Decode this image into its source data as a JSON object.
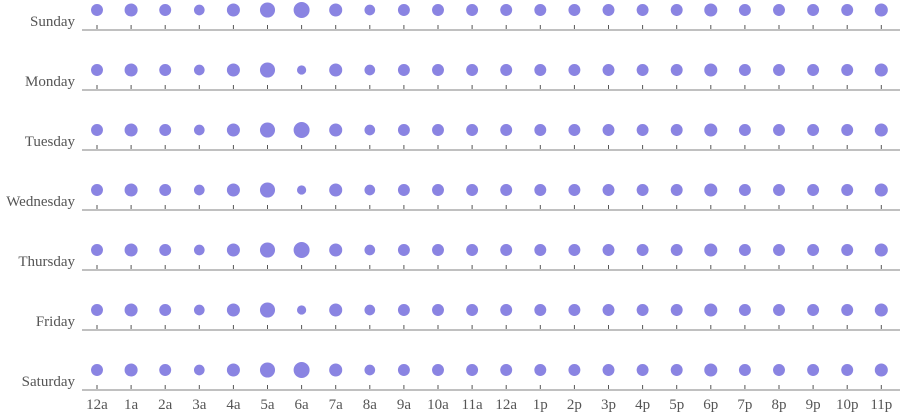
{
  "colors": {
    "dot": "#8a84e2",
    "axis": "#9a9a9a",
    "text": "#555555"
  },
  "chart_data": {
    "type": "scatter",
    "title": "",
    "xlabel": "",
    "ylabel": "",
    "grid": false,
    "legend": "none",
    "x": [
      "12a",
      "1a",
      "2a",
      "3a",
      "4a",
      "5a",
      "6a",
      "7a",
      "8a",
      "9a",
      "10a",
      "11a",
      "12a",
      "1p",
      "2p",
      "3p",
      "4p",
      "5p",
      "6p",
      "7p",
      "8p",
      "9p",
      "10p",
      "11p"
    ],
    "days": [
      "Sunday",
      "Monday",
      "Tuesday",
      "Wednesday",
      "Thursday",
      "Friday",
      "Saturday"
    ],
    "series": [
      {
        "name": "Sunday",
        "values": [
          5,
          6,
          5,
          4,
          6,
          8,
          9,
          6,
          4,
          5,
          5,
          5,
          5,
          5,
          5,
          5,
          5,
          5,
          6,
          5,
          5,
          5,
          5,
          6
        ]
      },
      {
        "name": "Monday",
        "values": [
          5,
          6,
          5,
          4,
          6,
          8,
          3,
          6,
          4,
          5,
          5,
          5,
          5,
          5,
          5,
          5,
          5,
          5,
          6,
          5,
          5,
          5,
          5,
          6
        ]
      },
      {
        "name": "Tuesday",
        "values": [
          5,
          6,
          5,
          4,
          6,
          8,
          9,
          6,
          4,
          5,
          5,
          5,
          5,
          5,
          5,
          5,
          5,
          5,
          6,
          5,
          5,
          5,
          5,
          6
        ]
      },
      {
        "name": "Wednesday",
        "values": [
          5,
          6,
          5,
          4,
          6,
          8,
          3,
          6,
          4,
          5,
          5,
          5,
          5,
          5,
          5,
          5,
          5,
          5,
          6,
          5,
          5,
          5,
          5,
          6
        ]
      },
      {
        "name": "Thursday",
        "values": [
          5,
          6,
          5,
          4,
          6,
          8,
          9,
          6,
          4,
          5,
          5,
          5,
          5,
          5,
          5,
          5,
          5,
          5,
          6,
          5,
          5,
          5,
          5,
          6
        ]
      },
      {
        "name": "Friday",
        "values": [
          5,
          6,
          5,
          4,
          6,
          8,
          3,
          6,
          4,
          5,
          5,
          5,
          5,
          5,
          5,
          5,
          5,
          5,
          6,
          5,
          5,
          5,
          5,
          6
        ]
      },
      {
        "name": "Saturday",
        "values": [
          5,
          6,
          5,
          4,
          6,
          8,
          9,
          6,
          4,
          5,
          5,
          5,
          5,
          5,
          5,
          5,
          5,
          5,
          6,
          5,
          5,
          5,
          5,
          6
        ]
      }
    ]
  }
}
